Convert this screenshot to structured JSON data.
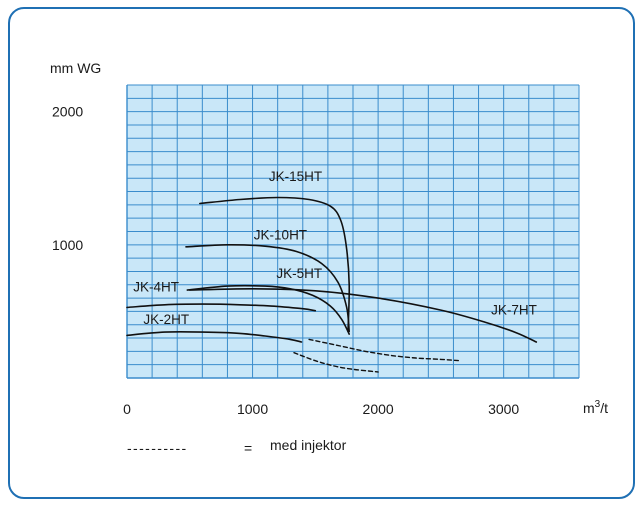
{
  "accent_color": "#1f70b4",
  "grid_bg_color": "#c9e7f8",
  "grid_line_color": "#3a8ccc",
  "chart_data": {
    "type": "line",
    "title": "",
    "ylabel": "mm WG",
    "xlabel_base": "m",
    "xlabel_sup": "3",
    "xlabel_tail": "/t",
    "xlim": [
      0,
      3600
    ],
    "ylim": [
      0,
      2200
    ],
    "grid": true,
    "x_ticks": [
      {
        "value": 0,
        "label": "0"
      },
      {
        "value": 1000,
        "label": "1000"
      },
      {
        "value": 2000,
        "label": "2000"
      },
      {
        "value": 3000,
        "label": "3000"
      }
    ],
    "y_ticks": [
      {
        "value": 1000,
        "label": "1000"
      },
      {
        "value": 2000,
        "label": "2000"
      }
    ],
    "series": [
      {
        "name": "JK-15HT",
        "dashed": false,
        "label_at": [
          1130,
          1480
        ],
        "x": [
          580,
          900,
          1200,
          1450,
          1620,
          1700,
          1745,
          1770,
          1760
        ],
        "y": [
          1310,
          1340,
          1355,
          1340,
          1290,
          1190,
          1000,
          700,
          350
        ]
      },
      {
        "name": "JK-10HT",
        "dashed": false,
        "label_at": [
          1010,
          1040
        ],
        "x": [
          470,
          800,
          1100,
          1350,
          1550,
          1680,
          1750,
          1770
        ],
        "y": [
          985,
          1000,
          990,
          950,
          860,
          720,
          530,
          350
        ]
      },
      {
        "name": "JK-5HT",
        "dashed": false,
        "label_at": [
          1190,
          750
        ],
        "x": [
          480,
          800,
          1100,
          1300,
          1480,
          1620,
          1710,
          1770
        ],
        "y": [
          660,
          690,
          690,
          670,
          620,
          540,
          440,
          330
        ]
      },
      {
        "name": "JK-4HT",
        "dashed": false,
        "label_at": [
          50,
          650
        ],
        "x": [
          500,
          1000,
          1500,
          2000,
          2500,
          2850,
          3100,
          3260
        ],
        "y": [
          660,
          670,
          655,
          600,
          510,
          420,
          340,
          270
        ]
      },
      {
        "name": "JK-7HT",
        "dashed": false,
        "label_at": [
          2900,
          475
        ],
        "x": [],
        "y": []
      },
      {
        "name": "JK-2HT",
        "dashed": false,
        "label_at": [
          130,
          405
        ],
        "x": [
          0,
          300,
          600,
          900,
          1150,
          1400,
          1500
        ],
        "y": [
          530,
          550,
          555,
          550,
          540,
          520,
          505
        ]
      },
      {
        "name": "",
        "dashed": false,
        "label_at": null,
        "x": [
          0,
          300,
          600,
          900,
          1100,
          1300,
          1390
        ],
        "y": [
          320,
          345,
          345,
          335,
          315,
          290,
          270
        ]
      },
      {
        "name": "",
        "dashed": true,
        "label_at": null,
        "x": [
          1450,
          1700,
          1900,
          2100,
          2300,
          2500,
          2650
        ],
        "y": [
          290,
          240,
          200,
          170,
          150,
          140,
          130
        ]
      },
      {
        "name": "",
        "dashed": true,
        "label_at": null,
        "x": [
          1330,
          1500,
          1650,
          1800,
          1950,
          2000
        ],
        "y": [
          190,
          130,
          90,
          65,
          50,
          45
        ]
      }
    ]
  },
  "legend": {
    "sample": "----------",
    "equals": "=",
    "text": "med injektor"
  }
}
